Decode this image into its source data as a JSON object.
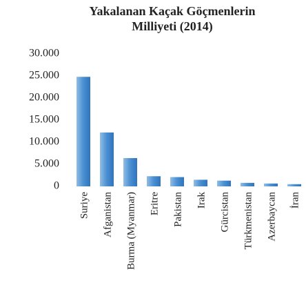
{
  "chart_data": {
    "type": "bar",
    "title": "Yakalanan Kaçak Göçmenlerin Milliyeti (2014)",
    "categories": [
      "Suriye",
      "Afganistan",
      "Burma (Myanmar)",
      "Eritre",
      "Pakistan",
      "Irak",
      "Gürcistan",
      "Türkmenistan",
      "Azerbaycan",
      "İran"
    ],
    "values": [
      24800,
      12200,
      6400,
      2300,
      2100,
      1500,
      1300,
      800,
      650,
      500
    ],
    "color": "#5b9bd5",
    "ylim": [
      0,
      30000
    ],
    "yticks": [
      0,
      {
        "value": 5000,
        "label": "5.000"
      },
      {
        "value": 10000,
        "label": "10.000"
      },
      {
        "value": 15000,
        "label": "15.000"
      },
      {
        "value": 20000,
        "label": "20.000"
      },
      {
        "value": 25000,
        "label": "25.000"
      },
      {
        "value": 30000,
        "label": "30.000"
      }
    ],
    "grid": false
  }
}
